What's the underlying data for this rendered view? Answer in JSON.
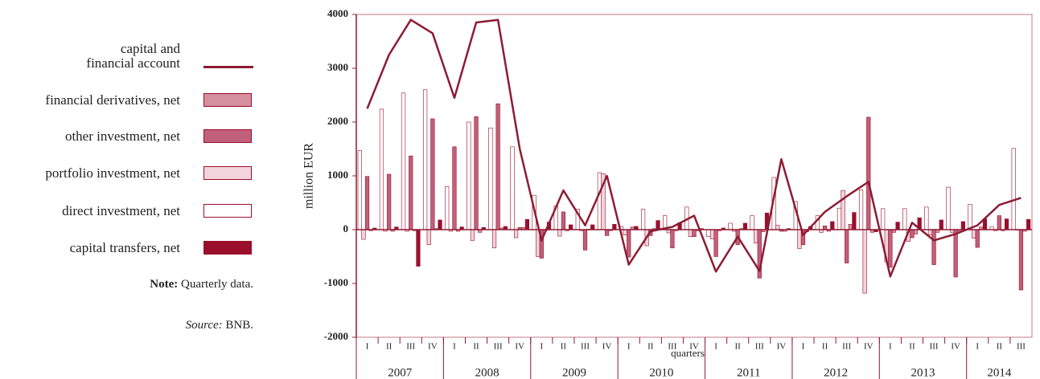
{
  "chart_data": {
    "type": "bar",
    "y_label": "million EUR",
    "x_label": "quarters",
    "categories": [
      "I",
      "II",
      "III",
      "IV",
      "I",
      "II",
      "III",
      "IV",
      "I",
      "II",
      "III",
      "IV",
      "I",
      "II",
      "III",
      "IV",
      "I",
      "II",
      "III",
      "IV",
      "I",
      "II",
      "III",
      "IV",
      "I",
      "II",
      "III",
      "IV",
      "I",
      "II",
      "III"
    ],
    "years": [
      "2007",
      "2008",
      "2009",
      "2010",
      "2011",
      "2012",
      "2013",
      "2014"
    ],
    "ylim": [
      -2000,
      4000
    ],
    "yticks": [
      -2000,
      -1000,
      0,
      1000,
      2000,
      3000,
      4000
    ],
    "series": [
      {
        "name": "capital and\nfinancial account",
        "type": "line",
        "color": "#8c1c34",
        "values": [
          2250,
          3250,
          3900,
          3650,
          2450,
          3850,
          3900,
          1500,
          -200,
          730,
          80,
          1000,
          -650,
          -30,
          50,
          260,
          -780,
          -130,
          -770,
          1310,
          -100,
          330,
          620,
          890,
          -870,
          130,
          -200,
          -80,
          80,
          460,
          590
        ]
      },
      {
        "name": "financial derivatives, net",
        "type": "bar",
        "color": "#d4909f",
        "values": [
          -20,
          -30,
          -20,
          20,
          -30,
          -50,
          30,
          40,
          -20,
          -20,
          10,
          -20,
          50,
          20,
          -20,
          -20,
          -20,
          20,
          -40,
          -30,
          -40,
          -30,
          100,
          -50,
          -50,
          -80,
          -50,
          -30,
          50,
          -20,
          -30
        ]
      },
      {
        "name": "other investment, net",
        "type": "bar",
        "color": "#c0607a",
        "values": [
          990,
          1030,
          1370,
          2060,
          1540,
          2100,
          2340,
          40,
          -530,
          330,
          -380,
          -110,
          -510,
          -110,
          -340,
          -130,
          -500,
          -280,
          -900,
          -30,
          -280,
          70,
          -620,
          2090,
          -700,
          -150,
          -650,
          -880,
          -330,
          260,
          -1120
        ]
      },
      {
        "name": "portfolio investment, net",
        "type": "bar",
        "color": "#f2d4dc",
        "values": [
          -180,
          -30,
          -30,
          -280,
          -30,
          -200,
          -340,
          -150,
          -500,
          -120,
          -20,
          1040,
          -100,
          -300,
          -60,
          -130,
          -170,
          -30,
          -250,
          80,
          -350,
          -50,
          730,
          -1180,
          -600,
          -220,
          -100,
          -50,
          -160,
          -20,
          -10
        ]
      },
      {
        "name": "direct investment, net",
        "type": "bar",
        "color": "#ffffff",
        "values": [
          1470,
          2240,
          2540,
          2600,
          800,
          2000,
          1890,
          1540,
          640,
          440,
          380,
          1060,
          60,
          380,
          260,
          420,
          -130,
          120,
          260,
          970,
          520,
          260,
          400,
          740,
          390,
          390,
          420,
          790,
          470,
          50,
          1510
        ]
      },
      {
        "name": "capital transfers, net",
        "type": "bar",
        "color": "#9a0f2c",
        "values": [
          30,
          50,
          -680,
          180,
          50,
          40,
          60,
          190,
          140,
          90,
          90,
          100,
          60,
          170,
          130,
          20,
          30,
          120,
          310,
          20,
          60,
          150,
          320,
          -40,
          140,
          220,
          180,
          150,
          200,
          200,
          190
        ]
      }
    ],
    "note": {
      "label": "Note:",
      "text": "Quarterly data."
    },
    "source": {
      "label": "Source:",
      "text": "BNB."
    }
  }
}
